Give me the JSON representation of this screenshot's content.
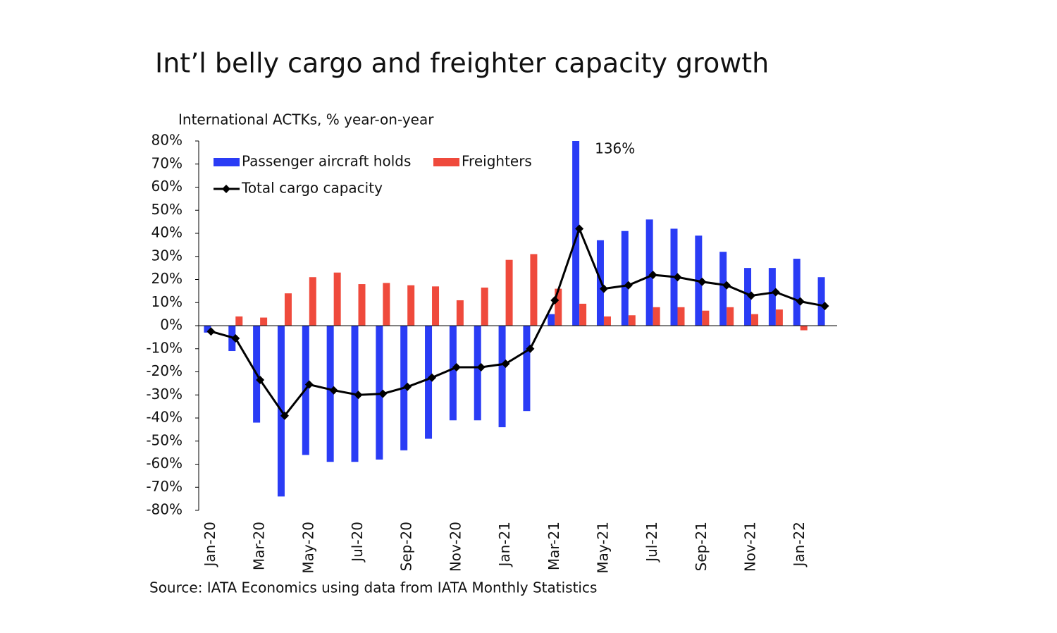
{
  "chart_data": {
    "type": "bar-line",
    "title": "Int’l belly cargo and freighter capacity growth",
    "y_axis_label": "International ACTKs, % year-on-year",
    "source": "Source: IATA Economics using data from IATA Monthly Statistics",
    "categories": [
      "Jan-20",
      null,
      "Mar-20",
      null,
      "May-20",
      null,
      "Jul-20",
      null,
      "Sep-20",
      null,
      "Nov-20",
      null,
      "Jan-21",
      null,
      "Mar-21",
      null,
      "May-21",
      null,
      "Jul-21",
      null,
      "Sep-21",
      null,
      "Nov-21",
      null,
      "Jan-22",
      null
    ],
    "series": [
      {
        "name": "Passenger aircraft holds",
        "type": "bar",
        "color": "#2a3cf5",
        "values": [
          -3,
          -11,
          -42,
          -74,
          -56,
          -59,
          -59,
          -58,
          -54,
          -49,
          -41,
          -41,
          -44,
          -37,
          5,
          136,
          37,
          41,
          46,
          42,
          39,
          32,
          25,
          25,
          29,
          21
        ],
        "value_labels": [
          null,
          null,
          null,
          null,
          null,
          null,
          null,
          null,
          null,
          null,
          null,
          null,
          null,
          null,
          null,
          "136%",
          null,
          null,
          null,
          null,
          null,
          null,
          null,
          null,
          null,
          null
        ]
      },
      {
        "name": "Freighters",
        "type": "bar",
        "color": "#ef4a3c",
        "values": [
          0,
          4,
          3.5,
          14,
          21,
          23,
          18,
          18.5,
          17.5,
          17,
          11,
          16.5,
          28.5,
          31,
          16,
          9.5,
          4,
          4.5,
          8,
          8,
          6.5,
          8,
          5,
          7,
          -2,
          0
        ]
      },
      {
        "name": "Total cargo capacity",
        "type": "line",
        "color": "#000000",
        "values": [
          -2.5,
          -5.5,
          -23.5,
          -39,
          -25.5,
          -28,
          -30,
          -29.5,
          -26.5,
          -22.5,
          -18,
          -18,
          -16.5,
          -10,
          11,
          42,
          16,
          17.5,
          22,
          21,
          19,
          17.5,
          13,
          14.5,
          10.5,
          8.5
        ]
      }
    ],
    "ylim": [
      -80,
      80
    ],
    "yticks": [
      {
        "value": -80,
        "label": "-80%"
      },
      {
        "value": -70,
        "label": "-70%"
      },
      {
        "value": -60,
        "label": "-60%"
      },
      {
        "value": -50,
        "label": "-50%"
      },
      {
        "value": -40,
        "label": "-40%"
      },
      {
        "value": -30,
        "label": "-30%"
      },
      {
        "value": -20,
        "label": "-20%"
      },
      {
        "value": -10,
        "label": "-10%"
      },
      {
        "value": 0,
        "label": "0%"
      },
      {
        "value": 10,
        "label": "10%"
      },
      {
        "value": 20,
        "label": "20%"
      },
      {
        "value": 30,
        "label": "30%"
      },
      {
        "value": 40,
        "label": "40%"
      },
      {
        "value": 50,
        "label": "50%"
      },
      {
        "value": 60,
        "label": "60%"
      },
      {
        "value": 70,
        "label": "70%"
      },
      {
        "value": 80,
        "label": "80%"
      }
    ],
    "grid": false
  }
}
